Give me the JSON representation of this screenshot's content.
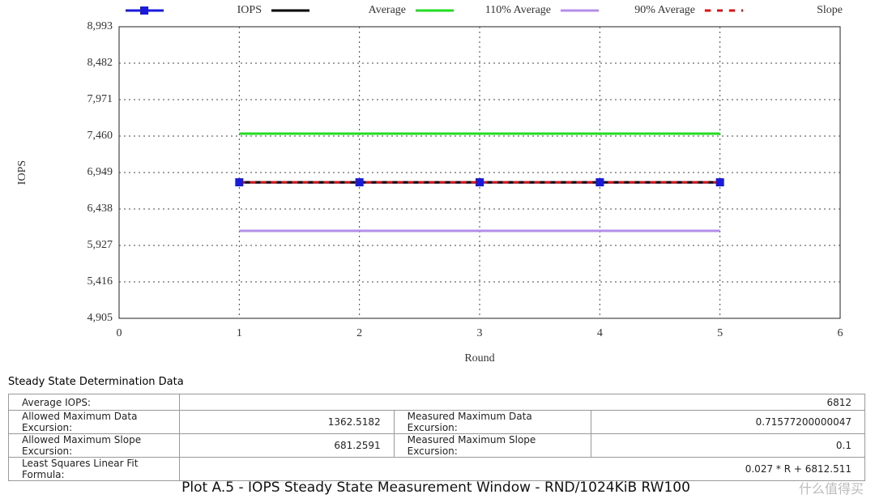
{
  "chart_data": {
    "type": "line",
    "x": [
      1,
      2,
      3,
      4,
      5
    ],
    "xlim": [
      0,
      6
    ],
    "xticks": [
      0,
      1,
      2,
      3,
      4,
      5,
      6
    ],
    "ylim": [
      4905,
      8993
    ],
    "yticks": [
      {
        "value": 4905,
        "label": "4,905"
      },
      {
        "value": 5416,
        "label": "5,416"
      },
      {
        "value": 5927,
        "label": "5,927"
      },
      {
        "value": 6438,
        "label": "6,438"
      },
      {
        "value": 6949,
        "label": "6,949"
      },
      {
        "value": 7460,
        "label": "7,460"
      },
      {
        "value": 7971,
        "label": "7,971"
      },
      {
        "value": 8482,
        "label": "8,482"
      },
      {
        "value": 8993,
        "label": "8,993"
      }
    ],
    "xlabel": "Round",
    "ylabel": "IOPS",
    "grid": true,
    "series": [
      {
        "name": "IOPS",
        "color": "#1a1adc",
        "values": [
          6812,
          6812,
          6812,
          6812,
          6812
        ],
        "marker": "square"
      },
      {
        "name": "Average",
        "color": "#000000",
        "values": [
          6812,
          6812,
          6812,
          6812,
          6812
        ]
      },
      {
        "name": "110% Average",
        "color": "#22dd22",
        "values": [
          7494,
          7494,
          7494,
          7494,
          7494
        ]
      },
      {
        "name": "90% Average",
        "color": "#b58ee8",
        "values": [
          6131,
          6131,
          6131,
          6131,
          6131
        ]
      },
      {
        "name": "Slope",
        "color": "#dd1111",
        "values": [
          6812.5,
          6812.5,
          6812.5,
          6812.5,
          6812.5
        ],
        "style": "dashed"
      }
    ]
  },
  "table": {
    "title": "Steady State Determination Data",
    "rows": [
      [
        "Average IOPS:",
        "6812"
      ],
      [
        "Allowed Maximum Data Excursion:",
        "1362.5182",
        "Measured Maximum Data Excursion:",
        "0.71577200000047"
      ],
      [
        "Allowed Maximum Slope Excursion:",
        "681.2591",
        "Measured Maximum Slope Excursion:",
        "0.1"
      ],
      [
        "Least Squares Linear Fit Formula:",
        "0.027 * R + 6812.511"
      ]
    ]
  },
  "caption": "Plot A.5 - IOPS Steady State Measurement Window - RND/1024KiB RW100",
  "watermark": "什么值得买"
}
